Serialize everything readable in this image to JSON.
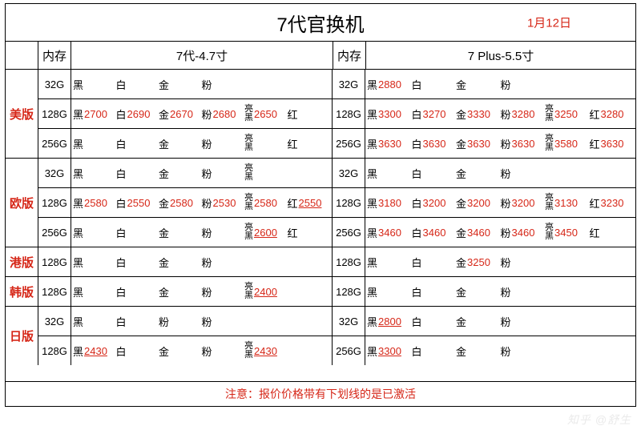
{
  "title": "7代官换机",
  "date": "1月12日",
  "header": {
    "memory_label": "内存",
    "model_a": "7代-4.7寸",
    "model_b": "7 Plus-5.5寸"
  },
  "footer_note": "注意：报价价格带有下划线的是已激活",
  "watermark": "知乎 @舒生",
  "regions": [
    {
      "name": "美版",
      "left": [
        {
          "mem": "32G",
          "cells": [
            {
              "c": "黑"
            },
            {
              "c": "白"
            },
            {
              "c": "金"
            },
            {
              "c": "粉"
            }
          ]
        },
        {
          "mem": "128G",
          "cells": [
            {
              "c": "黑",
              "p": "2700"
            },
            {
              "c": "白",
              "p": "2690"
            },
            {
              "c": "金",
              "p": "2670"
            },
            {
              "c": "粉",
              "p": "2680"
            },
            {
              "c": "亮黑",
              "p": "2650",
              "tall": true
            },
            {
              "c": "红"
            }
          ]
        },
        {
          "mem": "256G",
          "cells": [
            {
              "c": "黑"
            },
            {
              "c": "白"
            },
            {
              "c": "金"
            },
            {
              "c": "粉"
            },
            {
              "c": "亮黑",
              "tall": true
            },
            {
              "c": "红"
            }
          ]
        }
      ],
      "right": [
        {
          "mem": "32G",
          "cells": [
            {
              "c": "黑",
              "p": "2880"
            },
            {
              "c": "白"
            },
            {
              "c": "金"
            },
            {
              "c": "粉"
            }
          ]
        },
        {
          "mem": "128G",
          "cells": [
            {
              "c": "黑",
              "p": "3300"
            },
            {
              "c": "白",
              "p": "3270"
            },
            {
              "c": "金",
              "p": "3330"
            },
            {
              "c": "粉",
              "p": "3280"
            },
            {
              "c": "亮黑",
              "p": "3250",
              "tall": true
            },
            {
              "c": "红",
              "p": "3280"
            }
          ]
        },
        {
          "mem": "256G",
          "cells": [
            {
              "c": "黑",
              "p": "3630"
            },
            {
              "c": "白",
              "p": "3630"
            },
            {
              "c": "金",
              "p": "3630"
            },
            {
              "c": "粉",
              "p": "3630"
            },
            {
              "c": "亮黑",
              "p": "3580",
              "tall": true
            },
            {
              "c": "红",
              "p": "3630"
            }
          ]
        }
      ]
    },
    {
      "name": "欧版",
      "left": [
        {
          "mem": "32G",
          "cells": [
            {
              "c": "黑"
            },
            {
              "c": "白"
            },
            {
              "c": "金"
            },
            {
              "c": "粉"
            },
            {
              "c": "亮黑",
              "tall": true
            }
          ]
        },
        {
          "mem": "128G",
          "cells": [
            {
              "c": "黑",
              "p": "2580"
            },
            {
              "c": "白",
              "p": "2550"
            },
            {
              "c": "金",
              "p": "2580"
            },
            {
              "c": "粉",
              "p": "2530"
            },
            {
              "c": "亮黑",
              "p": "2580",
              "tall": true
            },
            {
              "c": "红",
              "p": "2550",
              "u": true
            }
          ]
        },
        {
          "mem": "256G",
          "cells": [
            {
              "c": "黑"
            },
            {
              "c": "白"
            },
            {
              "c": "金"
            },
            {
              "c": "粉"
            },
            {
              "c": "亮黑",
              "p": "2600",
              "u": true,
              "tall": true
            },
            {
              "c": "红"
            }
          ]
        }
      ],
      "right": [
        {
          "mem": "32G",
          "cells": [
            {
              "c": "黑"
            },
            {
              "c": "白"
            },
            {
              "c": "金"
            },
            {
              "c": "粉"
            }
          ]
        },
        {
          "mem": "128G",
          "cells": [
            {
              "c": "黑",
              "p": "3180"
            },
            {
              "c": "白",
              "p": "3200"
            },
            {
              "c": "金",
              "p": "3200"
            },
            {
              "c": "粉",
              "p": "3200"
            },
            {
              "c": "亮黑",
              "p": "3130",
              "tall": true
            },
            {
              "c": "红",
              "p": "3230"
            }
          ]
        },
        {
          "mem": "256G",
          "cells": [
            {
              "c": "黑",
              "p": "3460"
            },
            {
              "c": "白",
              "p": "3460"
            },
            {
              "c": "金",
              "p": "3460"
            },
            {
              "c": "粉",
              "p": "3460"
            },
            {
              "c": "亮黑",
              "p": "3450",
              "tall": true
            },
            {
              "c": "红"
            }
          ]
        }
      ]
    },
    {
      "name": "港版",
      "left": [
        {
          "mem": "128G",
          "cells": [
            {
              "c": "黑"
            },
            {
              "c": "白"
            },
            {
              "c": "金"
            },
            {
              "c": "粉"
            }
          ]
        }
      ],
      "right": [
        {
          "mem": "128G",
          "cells": [
            {
              "c": "黑"
            },
            {
              "c": "白"
            },
            {
              "c": "金",
              "p": "3250"
            },
            {
              "c": "粉"
            }
          ]
        }
      ]
    },
    {
      "name": "韩版",
      "left": [
        {
          "mem": "128G",
          "cells": [
            {
              "c": "黑"
            },
            {
              "c": "白"
            },
            {
              "c": "金"
            },
            {
              "c": "粉"
            },
            {
              "c": "亮黑",
              "p": "2400",
              "u": true,
              "tall": true
            }
          ]
        }
      ],
      "right": [
        {
          "mem": "128G",
          "cells": [
            {
              "c": "黑"
            },
            {
              "c": "白"
            },
            {
              "c": "金"
            },
            {
              "c": "粉"
            }
          ]
        }
      ]
    },
    {
      "name": "日版",
      "left": [
        {
          "mem": "32G",
          "cells": [
            {
              "c": "黑"
            },
            {
              "c": "白"
            },
            {
              "c": "粉"
            },
            {
              "c": "粉"
            }
          ]
        },
        {
          "mem": "128G",
          "cells": [
            {
              "c": "黑",
              "p": "2430",
              "u": true
            },
            {
              "c": "白"
            },
            {
              "c": "金"
            },
            {
              "c": "粉"
            },
            {
              "c": "亮黑",
              "p": "2430",
              "u": true,
              "tall": true
            }
          ]
        }
      ],
      "right": [
        {
          "mem": "32G",
          "cells": [
            {
              "c": "黑",
              "p": "2800",
              "u": true
            },
            {
              "c": "白"
            },
            {
              "c": "金"
            },
            {
              "c": "粉"
            }
          ]
        },
        {
          "mem": "256G",
          "cells": [
            {
              "c": "黑",
              "p": "3300",
              "u": true
            },
            {
              "c": "白"
            },
            {
              "c": "金"
            },
            {
              "c": "粉"
            }
          ]
        }
      ]
    }
  ]
}
